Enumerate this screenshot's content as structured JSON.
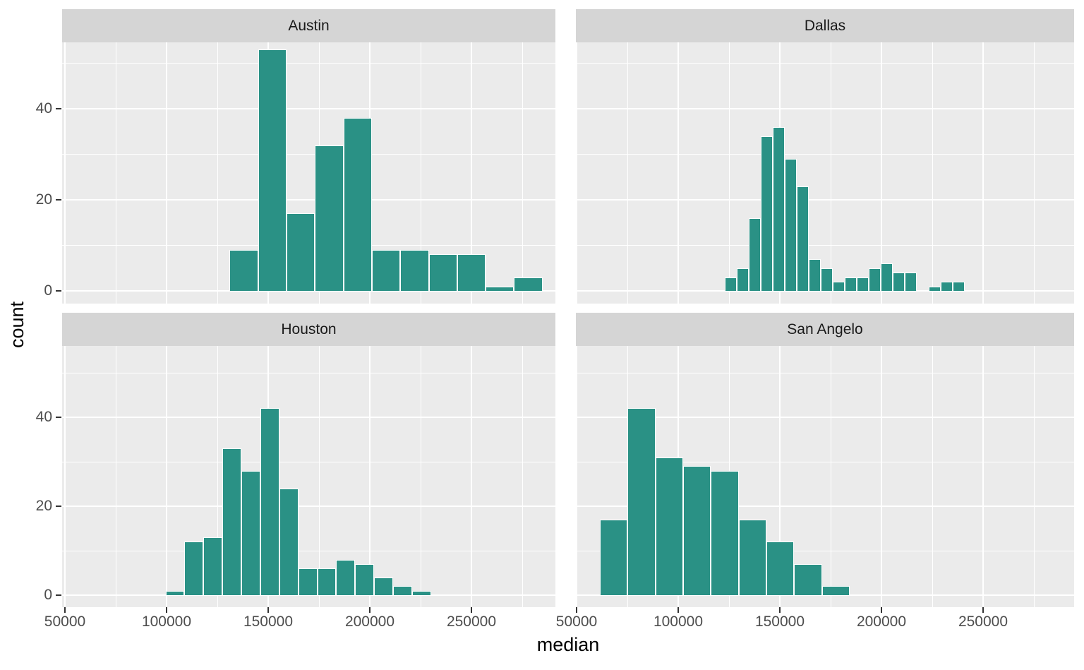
{
  "chart_data": {
    "type": "bar",
    "subtype": "faceted-histogram",
    "title": "",
    "xlabel": "median",
    "ylabel": "count",
    "x_ticks": [
      50000,
      100000,
      150000,
      200000,
      250000
    ],
    "x_minor_gridlines": [
      75000,
      125000,
      175000,
      225000,
      275000
    ],
    "y_ticks": [
      0,
      20,
      40
    ],
    "y_minor_gridlines": [
      10,
      30,
      50
    ],
    "xlim": [
      48500,
      291500
    ],
    "ylim": [
      0,
      55
    ],
    "grid": "on",
    "legend": "none",
    "facet_layout": [
      "Austin",
      "Dallas",
      "Houston",
      "San Angelo"
    ],
    "facets": [
      {
        "title": "Austin",
        "bin_start": 131000,
        "bin_width": 14000,
        "counts": [
          9,
          53,
          17,
          32,
          38,
          9,
          9,
          8,
          8,
          1,
          3
        ]
      },
      {
        "title": "Dallas",
        "bin_start": 123000,
        "bin_width": 5900,
        "counts": [
          3,
          5,
          16,
          34,
          36,
          29,
          23,
          7,
          5,
          2,
          3,
          3,
          5,
          6,
          4,
          4,
          0,
          1,
          2,
          2
        ]
      },
      {
        "title": "Houston",
        "bin_start": 99500,
        "bin_width": 9330,
        "counts": [
          1,
          12,
          13,
          33,
          28,
          42,
          24,
          6,
          6,
          8,
          7,
          4,
          2,
          1
        ]
      },
      {
        "title": "San Angelo",
        "bin_start": 61500,
        "bin_width": 13650,
        "counts": [
          17,
          42,
          31,
          29,
          28,
          17,
          12,
          7,
          2
        ]
      }
    ],
    "colors": {
      "bar_fill": "#2a9185",
      "bar_outline": "#ffffff",
      "panel_background": "#ebebeb",
      "strip_background": "#d5d5d5",
      "gridline": "#ffffff",
      "tick_label": "#4d4d4d",
      "tick_mark": "#333333",
      "strip_text": "#1a1a1a",
      "axis_title": "#000000"
    }
  }
}
